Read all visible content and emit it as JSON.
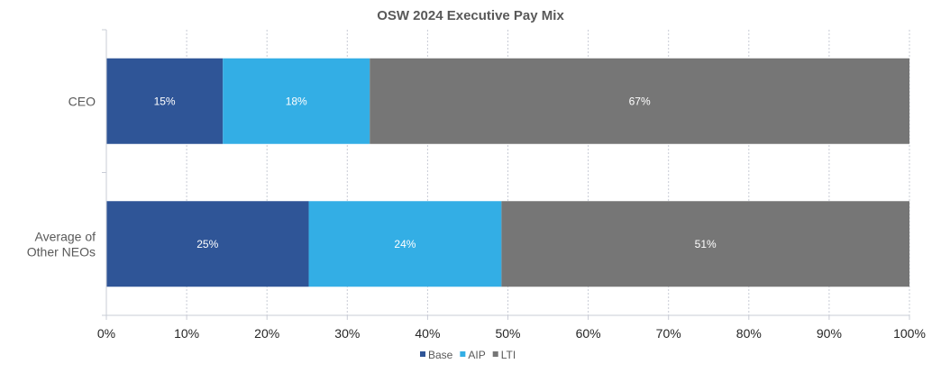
{
  "chart_data": {
    "type": "bar",
    "orientation": "horizontal",
    "stacked": "percent",
    "title": "OSW 2024 Executive Pay Mix",
    "categories": [
      "CEO",
      "Average of Other NEOs"
    ],
    "category_label_lines": [
      [
        "CEO"
      ],
      [
        "Average of",
        "Other NEOs"
      ]
    ],
    "series": [
      {
        "name": "Base",
        "color": "#2F5597",
        "values": [
          14.5,
          25.2
        ],
        "labels": [
          "15%",
          "25%"
        ]
      },
      {
        "name": "AIP",
        "color": "#33AEE5",
        "values": [
          18.3,
          24.0
        ],
        "labels": [
          "18%",
          "24%"
        ]
      },
      {
        "name": "LTI",
        "color": "#767676",
        "values": [
          67.2,
          50.8
        ],
        "labels": [
          "67%",
          "51%"
        ]
      }
    ],
    "xaxis": {
      "min": 0,
      "max": 100,
      "ticks": [
        0,
        10,
        20,
        30,
        40,
        50,
        60,
        70,
        80,
        90,
        100
      ],
      "tick_labels": [
        "0%",
        "10%",
        "20%",
        "30%",
        "40%",
        "50%",
        "60%",
        "70%",
        "80%",
        "90%",
        "100%"
      ]
    },
    "xlabel": "",
    "ylabel": "",
    "grid": "vertical-dashed",
    "legend": {
      "position": "bottom",
      "entries": [
        "Base",
        "AIP",
        "LTI"
      ]
    }
  }
}
